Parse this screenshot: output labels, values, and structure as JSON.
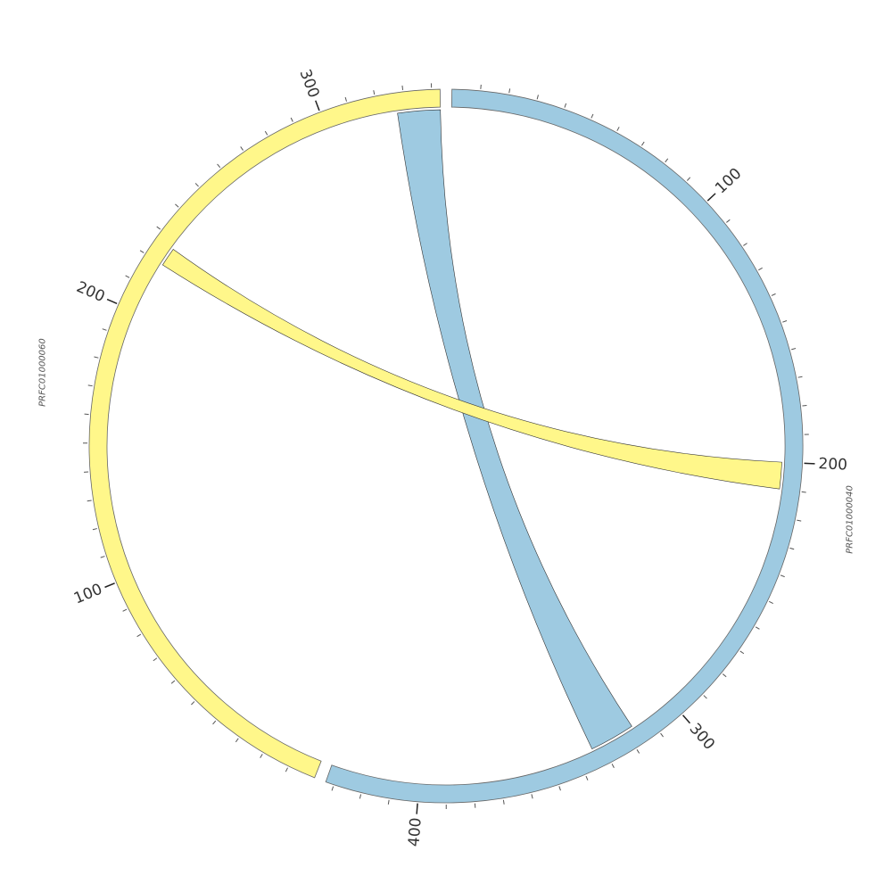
{
  "chart_data": {
    "type": "chord",
    "segments": [
      {
        "name": "PRFC01000040",
        "length": 433,
        "color": "#9ecae1",
        "ticks": [
          100,
          200,
          300,
          400
        ]
      },
      {
        "name": "PRFC01000060",
        "length": 343,
        "color": "#fff78a",
        "ticks": [
          100,
          200,
          300
        ]
      }
    ],
    "minor_tick_interval": 10,
    "links": [
      {
        "source": 0,
        "source_start": 317,
        "source_end": 334,
        "target": 1,
        "target_start": 327,
        "target_end": 343,
        "color": "#9ecae1"
      },
      {
        "source": 0,
        "source_start": 200,
        "source_end": 210,
        "target": 1,
        "target_start": 220,
        "target_end": 227,
        "color": "#fff78a"
      }
    ]
  }
}
